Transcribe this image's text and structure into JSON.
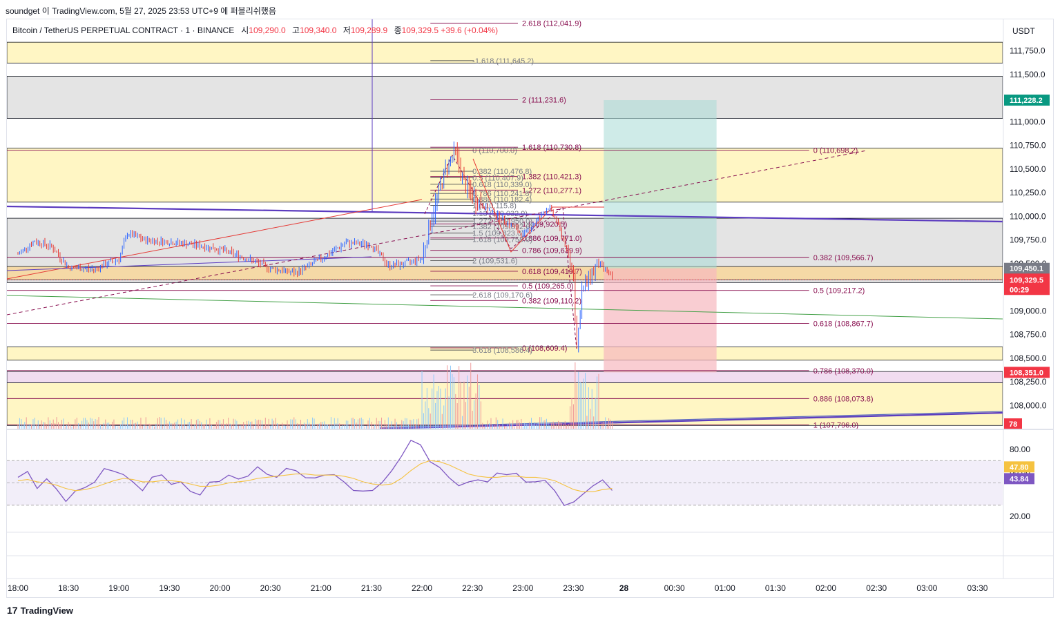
{
  "header": {
    "attribution": "soundget 이 TradingView.com, 5월 27, 2025 23:53 UTC+9 에 퍼블리쉬했음",
    "symbol": "Bitcoin / TetherUS PERPETUAL CONTRACT · 1 · BINANCE",
    "ohlc": [
      {
        "label": "시",
        "value": "109,290.0"
      },
      {
        "label": "고",
        "value": "109,340.0"
      },
      {
        "label": "저",
        "value": "109,289.9"
      },
      {
        "label": "종",
        "value": "109,329.5 +39.6 (+0.04%)"
      }
    ],
    "unit": "USDT"
  },
  "footer": {
    "brand_mark": "17",
    "brand": "TradingView"
  },
  "colors": {
    "up": "#089981",
    "down": "#f23645",
    "fib_line": "#880e4f",
    "fib_text_left": "#787b86",
    "trendline": "#5b3bbf",
    "zone_yellow": "#fff6c4",
    "zone_gray": "#e6e6e6",
    "target_green": "#a8dbd6",
    "stop_red": "#f6b8bf",
    "rsi": "#7e57c2",
    "rsi_ma": "#f5c240"
  },
  "chart_data": [
    {
      "type": "candlestick",
      "title": "",
      "xlabel": "",
      "ylabel": "USDT",
      "x_ticks": [
        "18:00",
        "18:30",
        "19:00",
        "19:30",
        "20:00",
        "20:30",
        "21:00",
        "21:30",
        "22:00",
        "22:30",
        "23:00",
        "23:30",
        "28",
        "00:30",
        "01:00",
        "01:30",
        "02:00",
        "02:30",
        "03:00",
        "03:30"
      ],
      "y_ticks": [
        "111,750.0",
        "111,500.0",
        "111,000.0",
        "110,750.0",
        "110,500.0",
        "110,250.0",
        "110,000.0",
        "109,750.0",
        "109,500.0",
        "109,000.0",
        "108,750.0",
        "108,500.0",
        "108,250.0",
        "108,000.0"
      ],
      "ylim": [
        107790,
        111890
      ],
      "price_path": [
        [
          "18:00",
          109600
        ],
        [
          "18:10",
          109740
        ],
        [
          "18:20",
          109680
        ],
        [
          "18:30",
          109460
        ],
        [
          "18:45",
          109440
        ],
        [
          "19:00",
          109550
        ],
        [
          "19:05",
          109820
        ],
        [
          "19:15",
          109750
        ],
        [
          "19:30",
          109730
        ],
        [
          "19:45",
          109700
        ],
        [
          "20:00",
          109650
        ],
        [
          "20:15",
          109560
        ],
        [
          "20:30",
          109450
        ],
        [
          "20:45",
          109400
        ],
        [
          "21:00",
          109550
        ],
        [
          "21:15",
          109720
        ],
        [
          "21:30",
          109700
        ],
        [
          "21:40",
          109480
        ],
        [
          "21:50",
          109500
        ],
        [
          "22:00",
          109560
        ],
        [
          "22:05",
          109940
        ],
        [
          "22:10",
          110250
        ],
        [
          "22:15",
          110550
        ],
        [
          "22:20",
          110680
        ],
        [
          "22:25",
          110340
        ],
        [
          "22:30",
          110210
        ],
        [
          "22:40",
          110060
        ],
        [
          "22:50",
          109950
        ],
        [
          "23:00",
          109800
        ],
        [
          "23:05",
          109890
        ],
        [
          "23:15",
          110100
        ],
        [
          "23:20",
          109950
        ],
        [
          "23:25",
          109700
        ],
        [
          "23:30",
          109400
        ],
        [
          "23:32",
          108610
        ],
        [
          "23:35",
          109200
        ],
        [
          "23:40",
          109380
        ],
        [
          "23:45",
          109500
        ],
        [
          "23:50",
          109420
        ],
        [
          "23:53",
          109330
        ]
      ],
      "current_price": "109,329.5",
      "countdown": "00:29",
      "price_badges": [
        {
          "price": 111228.2,
          "text": "111,228.2",
          "color": "#089981"
        },
        {
          "price": 109450.1,
          "text": "109,450.1",
          "color": "#787b86"
        },
        {
          "price": 108351.0,
          "text": "108,351.0",
          "color": "#f23645"
        }
      ],
      "volume_badge": "78",
      "fib_levels": [
        {
          "x": "22:57",
          "price": 112041.9,
          "label": "2.618 (112,041.9)",
          "side": "right"
        },
        {
          "x": "22:30",
          "price": 111645.2,
          "label": "-1.618 (111,645.2)",
          "side": "left"
        },
        {
          "x": "22:57",
          "price": 111231.6,
          "label": "2 (111,231.6)",
          "side": "right"
        },
        {
          "x": "22:57",
          "price": 110730.8,
          "label": "1.618 (110,730.8)",
          "side": "right"
        },
        {
          "x": "22:30",
          "price": 110700.0,
          "label": "0 (110,700.0)",
          "side": "left"
        },
        {
          "x": "22:30",
          "price": 110476.8,
          "label": "0.382 (110,476.8)",
          "side": "left"
        },
        {
          "x": "22:57",
          "price": 110421.3,
          "label": "1.382 (110,421.3)",
          "side": "right"
        },
        {
          "x": "22:30",
          "price": 110407.9,
          "label": "0.5 (110,407.9)",
          "side": "left"
        },
        {
          "x": "22:30",
          "price": 110339.0,
          "label": "0.618 (110,339.0)",
          "side": "left"
        },
        {
          "x": "22:57",
          "price": 110277.1,
          "label": "1.272 (110,277.1)",
          "side": "right"
        },
        {
          "x": "22:30",
          "price": 110241.8,
          "label": "0.786 (110,241.8)",
          "side": "left"
        },
        {
          "x": "22:30",
          "price": 110182.4,
          "label": "0.886 (110,182.4)",
          "side": "left"
        },
        {
          "x": "22:30",
          "price": 110115.8,
          "label": "1 (110,115.8)",
          "side": "left"
        },
        {
          "x": "22:30",
          "price": 110032.9,
          "label": "1.13 (110,032.9)",
          "side": "left"
        },
        {
          "x": "22:57",
          "price": 109920.5,
          "label": "1 (109,920.5)",
          "side": "right"
        },
        {
          "x": "22:30",
          "price": 109950.0,
          "label": "1.272 (109,950.0)",
          "side": "left"
        },
        {
          "x": "22:30",
          "price": 109892.6,
          "label": "1.382 (109,892.6)",
          "side": "left"
        },
        {
          "x": "22:30",
          "price": 109823.0,
          "label": "1.5 (109,823.0)",
          "side": "left"
        },
        {
          "x": "22:57",
          "price": 109771.0,
          "label": "0.886 (109,771.0)",
          "side": "right"
        },
        {
          "x": "22:30",
          "price": 109758.0,
          "label": "1.618 (109,758.0)",
          "side": "left"
        },
        {
          "x": "22:57",
          "price": 109639.9,
          "label": "0.786 (109,639.9)",
          "side": "right"
        },
        {
          "x": "22:30",
          "price": 109531.6,
          "label": "2 (109,531.6)",
          "side": "left"
        },
        {
          "x": "22:57",
          "price": 109419.7,
          "label": "0.618 (109,419.7)",
          "side": "right"
        },
        {
          "x": "22:57",
          "price": 109265.0,
          "label": "0.5 (109,265.0)",
          "side": "right"
        },
        {
          "x": "22:30",
          "price": 109170.6,
          "label": "2.618 (109,170.6)",
          "side": "left"
        },
        {
          "x": "22:57",
          "price": 109110.2,
          "label": "0.382 (109,110.2)",
          "side": "right"
        },
        {
          "x": "22:57",
          "price": 108609.4,
          "label": "0 (108,609.4)",
          "side": "right"
        },
        {
          "x": "22:30",
          "price": 108586.4,
          "label": "3.618 (108,586.4)",
          "side": "left"
        },
        {
          "x": "01:50",
          "price": 110698.2,
          "label": "0 (110,698.2)",
          "side": "right"
        },
        {
          "x": "01:50",
          "price": 109566.7,
          "label": "0.382 (109,566.7)",
          "side": "right"
        },
        {
          "x": "01:50",
          "price": 109217.2,
          "label": "0.5 (109,217.2)",
          "side": "right"
        },
        {
          "x": "01:50",
          "price": 108867.7,
          "label": "0.618 (108,867.7)",
          "side": "right"
        },
        {
          "x": "01:50",
          "price": 108370.0,
          "label": "0.786 (108,370.0)",
          "side": "right"
        },
        {
          "x": "01:50",
          "price": 108073.8,
          "label": "0.886 (108,073.8)",
          "side": "right"
        },
        {
          "x": "01:50",
          "price": 107796.0,
          "label": "1 (107,796.0)",
          "side": "right"
        }
      ],
      "zones": [
        {
          "from": 111620,
          "to": 111840,
          "kind": "yellow"
        },
        {
          "from": 111035,
          "to": 111480,
          "kind": "gray"
        },
        {
          "from": 110150,
          "to": 110720,
          "kind": "yellow"
        },
        {
          "from": 109300,
          "to": 109980,
          "kind": "gray"
        },
        {
          "from": 109330,
          "to": 109470,
          "kind": "orange"
        },
        {
          "from": 108480,
          "to": 108620,
          "kind": "yellow"
        },
        {
          "from": 108240,
          "to": 108360,
          "kind": "pink"
        },
        {
          "from": 107790,
          "to": 108240,
          "kind": "yellow"
        }
      ],
      "position": {
        "entry": 109450.1,
        "target": 111228.2,
        "stop": 108351.0,
        "from": "23:48",
        "to": "00:55"
      }
    },
    {
      "type": "line",
      "title": "",
      "ylim": [
        0,
        100
      ],
      "y_ticks": [
        "80.00",
        "60.00",
        "20.00"
      ],
      "bands": [
        30,
        70
      ],
      "series": [
        {
          "values": [
            55,
            58,
            48,
            52,
            44,
            36,
            40,
            47,
            52,
            60,
            63,
            57,
            49,
            46,
            53,
            57,
            51,
            48,
            44,
            40,
            48,
            54,
            56,
            52,
            59,
            62,
            58,
            57,
            60,
            63,
            55,
            52,
            60,
            56,
            50,
            46,
            40,
            44,
            52,
            58,
            76,
            88,
            82,
            72,
            62,
            54,
            50,
            48,
            54,
            52,
            56,
            60,
            58,
            49,
            54,
            50,
            43,
            32,
            30,
            42,
            48,
            50,
            46
          ]
        },
        {
          "values": [
            52,
            53,
            51,
            50,
            48,
            45,
            43,
            44,
            46,
            49,
            52,
            54,
            53,
            51,
            51,
            52,
            52,
            51,
            49,
            47,
            47,
            48,
            50,
            51,
            52,
            54,
            55,
            56,
            57,
            58,
            58,
            57,
            57,
            57,
            56,
            54,
            51,
            49,
            48,
            49,
            54,
            61,
            67,
            70,
            69,
            66,
            62,
            58,
            56,
            55,
            55,
            56,
            56,
            55,
            55,
            54,
            52,
            48,
            44,
            42,
            42,
            44,
            45
          ]
        }
      ],
      "current_values": [
        "47.80",
        "43.84"
      ]
    }
  ]
}
